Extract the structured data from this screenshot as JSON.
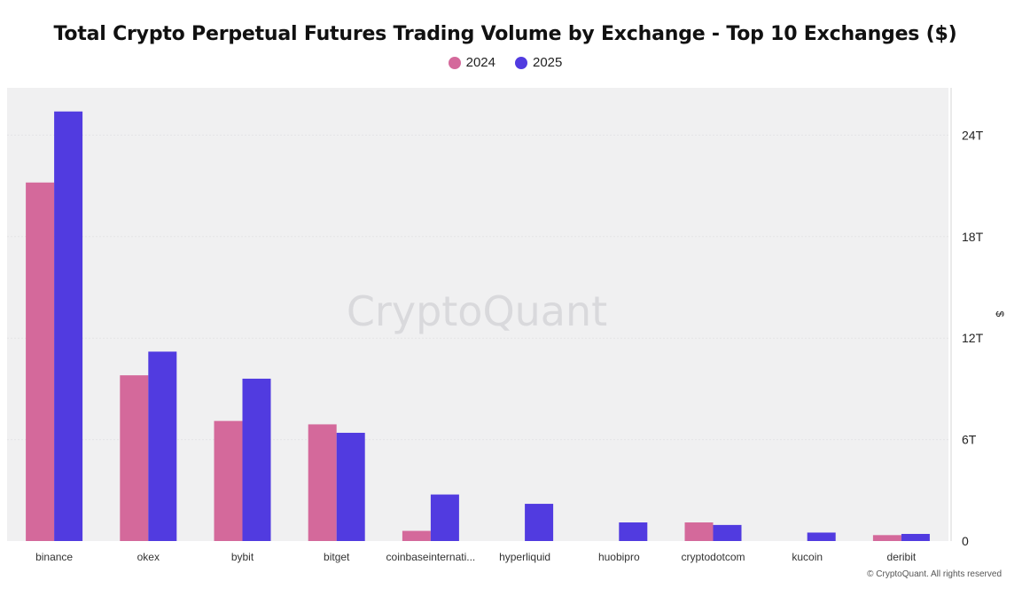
{
  "chart_data": {
    "type": "bar",
    "title": "Total Crypto Perpetual Futures Trading Volume by Exchange - Top 10 Exchanges ($)",
    "xlabel": "",
    "ylabel": "$",
    "ylim": [
      0,
      26.8
    ],
    "yticks": [
      0,
      6,
      12,
      18,
      24
    ],
    "ytick_labels": [
      "0",
      "6T",
      "12T",
      "18T",
      "24T"
    ],
    "categories": [
      "binance",
      "okex",
      "bybit",
      "bitget",
      "coinbaseinternati...",
      "hyperliquid",
      "huobipro",
      "cryptodotcom",
      "kucoin",
      "deribit"
    ],
    "series": [
      {
        "name": "2024",
        "color": "#d4699b",
        "values": [
          21.2,
          9.8,
          7.1,
          6.9,
          0.6,
          0.0,
          0.0,
          1.1,
          0.0,
          0.35
        ]
      },
      {
        "name": "2025",
        "color": "#513be0",
        "values": [
          25.4,
          11.2,
          9.6,
          6.4,
          2.75,
          2.2,
          1.1,
          0.95,
          0.5,
          0.42
        ]
      }
    ],
    "legend_position": "top-center",
    "grid": true,
    "watermark": "CryptoQuant"
  },
  "footer": {
    "credit": "© CryptoQuant. All rights reserved"
  }
}
